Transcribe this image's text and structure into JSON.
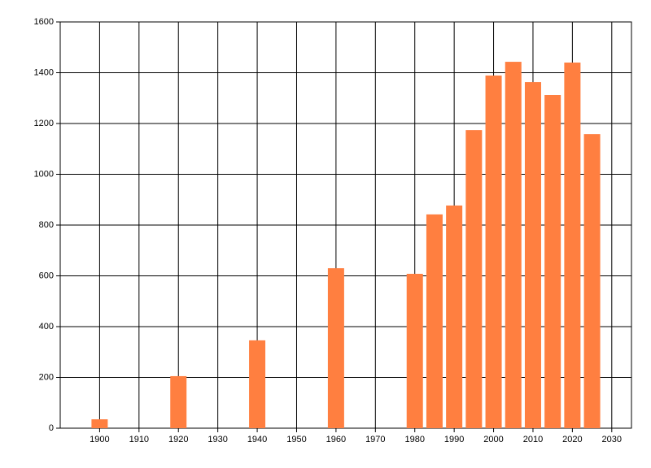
{
  "chart_data": {
    "type": "bar",
    "x": [
      1900,
      1920,
      1940,
      1960,
      1980,
      1985,
      1990,
      1995,
      2000,
      2005,
      2010,
      2015,
      2020,
      2025
    ],
    "values": [
      35,
      205,
      346,
      630,
      608,
      842,
      877,
      1174,
      1389,
      1443,
      1363,
      1312,
      1440,
      1158
    ],
    "color": "#ff7f40",
    "xlim": [
      1890,
      2035
    ],
    "xticks": [
      1900,
      1910,
      1920,
      1930,
      1940,
      1950,
      1960,
      1970,
      1980,
      1990,
      2000,
      2010,
      2020,
      2030
    ],
    "ylim": [
      0,
      1600
    ],
    "yticks": [
      0,
      200,
      400,
      600,
      800,
      1000,
      1200,
      1400,
      1600
    ],
    "grid": true
  }
}
